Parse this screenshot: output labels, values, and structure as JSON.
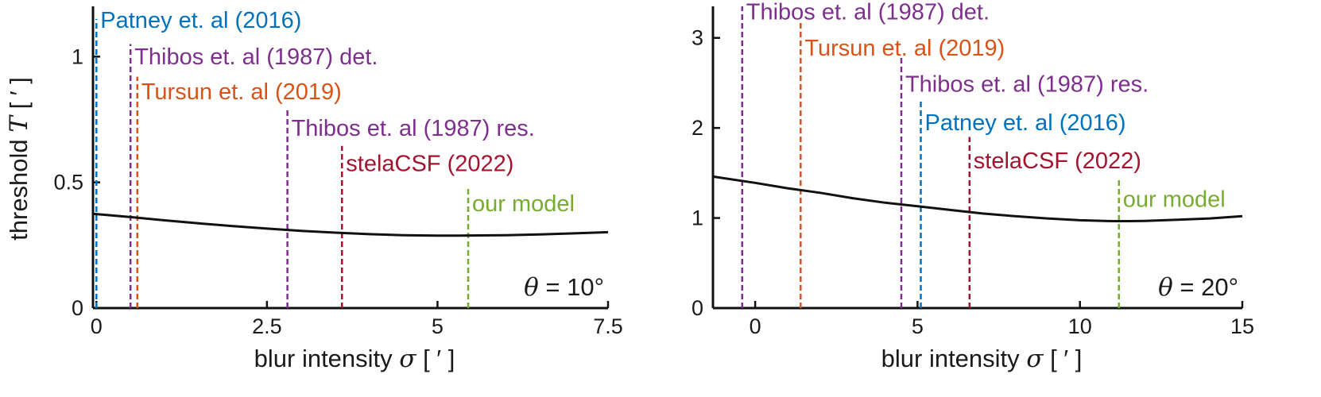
{
  "chart_data": [
    {
      "type": "line",
      "xlabel": "blur intensity σ [ ′ ]",
      "ylabel": "threshold T [ ′ ]",
      "xlim": [
        -0.05,
        7.5
      ],
      "ylim": [
        0,
        1.2
      ],
      "xticks": [
        0,
        2.5,
        5,
        7.5
      ],
      "xtick_labels": [
        "0",
        "2.5",
        "5",
        "7.5"
      ],
      "yticks": [
        0,
        0.5,
        1
      ],
      "ytick_labels": [
        "0",
        "0.5",
        "1"
      ],
      "annotation": "θ = 10°",
      "series": [
        {
          "x": [
            -0.05,
            0.5,
            1,
            1.5,
            2,
            2.5,
            3,
            3.5,
            4,
            4.5,
            5,
            5.3,
            5.6,
            6,
            6.5,
            7,
            7.5
          ],
          "y": [
            0.375,
            0.362,
            0.349,
            0.337,
            0.326,
            0.316,
            0.307,
            0.3,
            0.294,
            0.29,
            0.288,
            0.288,
            0.289,
            0.29,
            0.293,
            0.297,
            0.302
          ],
          "color": "#111111"
        }
      ],
      "markers": [
        {
          "label": "Patney et. al (2016)",
          "x": 0.0,
          "color": "#0072bd",
          "line_top": 1.15,
          "label_y": 1.15
        },
        {
          "label": "Thibos et. al (1987) det.",
          "x": 0.5,
          "color": "#7e2f8e",
          "line_top": 1.05,
          "label_y": 1.005
        },
        {
          "label": "Tursun et. al (2019)",
          "x": 0.6,
          "color": "#d95319",
          "line_top": 0.92,
          "label_y": 0.865
        },
        {
          "label": "Thibos et. al (1987) res.",
          "x": 2.8,
          "color": "#7e2f8e",
          "line_top": 0.79,
          "label_y": 0.72
        },
        {
          "label": "stelaCSF (2022)",
          "x": 3.6,
          "color": "#a2142f",
          "line_top": 0.645,
          "label_y": 0.58
        },
        {
          "label": "our model",
          "x": 5.45,
          "color": "#77ac30",
          "line_top": 0.48,
          "label_y": 0.42
        }
      ]
    },
    {
      "type": "line",
      "xlabel": "blur intensity σ [ ′ ]",
      "ylabel": "",
      "xlim": [
        -1.3,
        15
      ],
      "ylim": [
        0,
        3.35
      ],
      "xticks": [
        0,
        5,
        10,
        15
      ],
      "xtick_labels": [
        "0",
        "5",
        "10",
        "15"
      ],
      "yticks": [
        0,
        1,
        2,
        3
      ],
      "ytick_labels": [
        "0",
        "1",
        "2",
        "3"
      ],
      "annotation": "θ = 20°",
      "series": [
        {
          "x": [
            -1.3,
            0,
            1,
            2,
            3,
            4,
            5,
            6,
            7,
            8,
            9,
            10,
            11,
            11.5,
            12,
            13,
            14,
            15
          ],
          "y": [
            1.46,
            1.39,
            1.33,
            1.28,
            1.22,
            1.17,
            1.13,
            1.09,
            1.05,
            1.02,
            0.995,
            0.975,
            0.965,
            0.965,
            0.968,
            0.98,
            0.995,
            1.02
          ],
          "color": "#111111"
        }
      ],
      "markers": [
        {
          "label": "Thibos et. al (1987) det.",
          "x": -0.4,
          "color": "#7e2f8e",
          "line_top": 3.35,
          "label_y": 3.3
        },
        {
          "label": "Tursun et. al (2019)",
          "x": 1.4,
          "color": "#d95319",
          "line_top": 3.2,
          "label_y": 2.9
        },
        {
          "label": "Thibos et. al (1987) res.",
          "x": 4.5,
          "color": "#7e2f8e",
          "line_top": 2.8,
          "label_y": 2.5
        },
        {
          "label": "Patney et. al (2016)",
          "x": 5.1,
          "color": "#0072bd",
          "line_top": 2.3,
          "label_y": 2.07
        },
        {
          "label": "stelaCSF (2022)",
          "x": 6.6,
          "color": "#a2142f",
          "line_top": 1.9,
          "label_y": 1.65
        },
        {
          "label": "our model",
          "x": 11.2,
          "color": "#77ac30",
          "line_top": 1.45,
          "label_y": 1.22
        }
      ]
    }
  ]
}
